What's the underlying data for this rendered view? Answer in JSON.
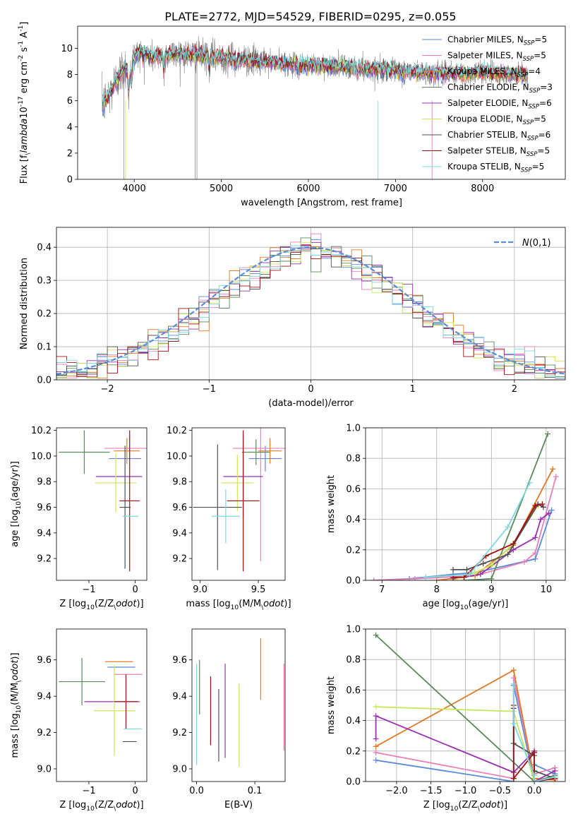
{
  "figure": {
    "title": "PLATE=2772, MJD=54529, FIBERID=0295, z=0.055"
  },
  "colors": {
    "grid": "#b0b0b0",
    "observed_spectrum": "#808080",
    "gauss": "#5b8bd9"
  },
  "models": [
    {
      "name": "Chabrier MILES",
      "nssp": "5",
      "color": "#5b8bd9"
    },
    {
      "name": "Salpeter MILES",
      "nssp": "5",
      "color": "#e97fb9"
    },
    {
      "name": "Kroupa MILES",
      "nssp": "4",
      "color": "#e07b28"
    },
    {
      "name": "Chabrier ELODIE",
      "nssp": "3",
      "color": "#5a8a5a"
    },
    {
      "name": "Salpeter ELODIE",
      "nssp": "6",
      "color": "#9b30b0"
    },
    {
      "name": "Kroupa ELODIE",
      "nssp": "5",
      "color": "#c8e85a"
    },
    {
      "name": "Chabrier STELIB",
      "nssp": "6",
      "color": "#505050"
    },
    {
      "name": "Salpeter STELIB",
      "nssp": "5",
      "color": "#a01010"
    },
    {
      "name": "Kroupa STELIB",
      "nssp": "5",
      "color": "#7dd8e0"
    }
  ],
  "chart_data": [
    {
      "id": "spectrum",
      "type": "line",
      "xlabel": "wavelength [Angstrom, rest frame]",
      "ylabel": "Flux [f$_\\lambda$10$^{-17}$ erg cm$^{-2}$ s$^{-1}$ A$^{-1}$]",
      "xlim": [
        3350,
        8950
      ],
      "ylim": [
        0,
        11.7
      ],
      "xticks": [
        4000,
        5000,
        6000,
        7000,
        8000
      ],
      "yticks": [
        0,
        2,
        4,
        6,
        8,
        10
      ],
      "grid": false,
      "legend": "right",
      "continuum": {
        "x": [
          3650,
          3700,
          3800,
          3900,
          3950,
          4000,
          4100,
          4200,
          4300,
          4400,
          4500,
          4700,
          5000,
          5200,
          5400,
          5600,
          5800,
          6000,
          6200,
          6400,
          6600,
          6800,
          7000,
          7200,
          7400,
          7600,
          7800,
          8000,
          8200,
          8500
        ],
        "y": [
          5.8,
          6.3,
          7.7,
          8.6,
          7.9,
          9.4,
          9.8,
          9.3,
          9.4,
          9.5,
          9.6,
          9.5,
          9.3,
          9.2,
          9.0,
          8.9,
          8.8,
          8.7,
          8.7,
          8.6,
          8.5,
          8.4,
          8.3,
          8.2,
          8.1,
          8.1,
          8.1,
          8.2,
          8.1,
          8.0
        ]
      }
    },
    {
      "id": "residuals",
      "type": "histogram",
      "xlabel": "(data-model)/error",
      "ylabel": "Normed distribution",
      "xlim": [
        -2.5,
        2.5
      ],
      "ylim": [
        0,
        0.46
      ],
      "xticks": [
        -2,
        -1,
        0,
        1,
        2
      ],
      "yticks": [
        0.0,
        0.1,
        0.2,
        0.3,
        0.4
      ],
      "grid": true,
      "legend_label": "$\\mathcal{N}(0,1)$",
      "legend": "top-right",
      "bin_width": 0.1
    },
    {
      "id": "age_vs_Z",
      "type": "scatter",
      "xlabel": "Z [log$_{10}$(Z/Z$_\\odot$)]",
      "ylabel": "age  [log$_{10}$(age/yr)]",
      "xlim": [
        -1.7,
        0.25
      ],
      "ylim": [
        9.03,
        10.22
      ],
      "xticks": [
        -1,
        0
      ],
      "yticks": [
        9.2,
        9.4,
        9.6,
        9.8,
        10.0,
        10.2
      ],
      "grid": false,
      "points": [
        {
          "x": -0.22,
          "xerr": 0.35,
          "y": 9.98,
          "yerr": 0.0,
          "model": 0
        },
        {
          "x": -0.12,
          "xerr": 0.55,
          "y": 10.06,
          "yerr": 0.1,
          "model": 1
        },
        {
          "x": -0.18,
          "xerr": 0.28,
          "y": 10.04,
          "yerr": 0.1,
          "model": 2
        },
        {
          "x": -1.1,
          "xerr": 0.55,
          "y": 10.03,
          "yerr": 0.17,
          "model": 3
        },
        {
          "x": -0.35,
          "xerr": 0.5,
          "y": 9.84,
          "yerr": 0.0,
          "model": 4
        },
        {
          "x": -0.42,
          "xerr": 0.45,
          "y": 9.79,
          "yerr": 0.23,
          "model": 5
        },
        {
          "x": -0.22,
          "xerr": 0.12,
          "y": 9.6,
          "yerr": 0.48,
          "model": 6
        },
        {
          "x": -0.12,
          "xerr": 0.22,
          "y": 9.65,
          "yerr": 0.55,
          "model": 7
        },
        {
          "x": -0.1,
          "xerr": 0.17,
          "y": 9.53,
          "yerr": 0.0,
          "model": 8
        }
      ]
    },
    {
      "id": "age_vs_mass",
      "type": "scatter",
      "xlabel": "mass [log$_{10}$(M/M$_\\odot$)]",
      "ylabel": "",
      "xlim": [
        8.93,
        9.73
      ],
      "ylim": [
        9.03,
        10.22
      ],
      "xticks": [
        9.0,
        9.5
      ],
      "yticks": [
        9.2,
        9.4,
        9.6,
        9.8,
        10.0,
        10.2
      ],
      "grid": false,
      "points": [
        {
          "x": 9.56,
          "xerr": 0.14,
          "y": 9.98,
          "yerr": 0.1,
          "model": 0
        },
        {
          "x": 9.52,
          "xerr": 0.24,
          "y": 10.06,
          "yerr": 0.88,
          "model": 1
        },
        {
          "x": 9.6,
          "xerr": 0.1,
          "y": 10.04,
          "yerr": 0.1,
          "model": 2
        },
        {
          "x": 9.48,
          "xerr": 0.12,
          "y": 10.03,
          "yerr": 0.1,
          "model": 3
        },
        {
          "x": 9.37,
          "xerr": 0.17,
          "y": 9.84,
          "yerr": 0.32,
          "model": 4
        },
        {
          "x": 9.32,
          "xerr": 0.14,
          "y": 9.79,
          "yerr": 0.22,
          "model": 5
        },
        {
          "x": 9.15,
          "xerr": 0.21,
          "y": 9.6,
          "yerr": 0.49,
          "model": 6
        },
        {
          "x": 9.37,
          "xerr": 0.14,
          "y": 9.65,
          "yerr": 0.55,
          "model": 7
        },
        {
          "x": 9.22,
          "xerr": 0.12,
          "y": 9.53,
          "yerr": 0.21,
          "model": 8
        }
      ]
    },
    {
      "id": "weight_vs_age",
      "type": "line",
      "xlabel": "age  [log$_{10}$(age/yr)]",
      "ylabel": "mass weight",
      "xlim": [
        6.7,
        10.35
      ],
      "ylim": [
        0,
        1.0
      ],
      "xticks": [
        7,
        8,
        9,
        10
      ],
      "yticks": [
        0.0,
        0.2,
        0.4,
        0.6,
        0.8,
        1.0
      ],
      "grid": true,
      "series": [
        {
          "model": 0,
          "x": [
            6.85,
            7.5,
            8.3,
            8.7,
            9.8,
            10.1
          ],
          "y": [
            0.0,
            0.01,
            0.04,
            0.05,
            0.14,
            0.46
          ]
        },
        {
          "model": 1,
          "x": [
            6.85,
            7.6,
            8.7,
            9.6,
            9.8,
            10.18
          ],
          "y": [
            0.0,
            0.01,
            0.03,
            0.12,
            0.18,
            0.68
          ]
        },
        {
          "model": 2,
          "x": [
            8.0,
            8.7,
            9.4,
            10.12
          ],
          "y": [
            0.0,
            0.03,
            0.23,
            0.73
          ]
        },
        {
          "model": 3,
          "x": [
            8.5,
            9.0,
            10.03
          ],
          "y": [
            0.0,
            0.01,
            0.96
          ]
        },
        {
          "model": 4,
          "x": [
            8.3,
            8.8,
            9.4,
            9.8,
            9.9,
            10.05
          ],
          "y": [
            0.01,
            0.04,
            0.2,
            0.28,
            0.4,
            0.44
          ]
        },
        {
          "model": 5,
          "x": [
            8.3,
            8.7,
            9.0,
            9.4,
            9.85
          ],
          "y": [
            0.0,
            0.05,
            0.1,
            0.24,
            0.49
          ]
        },
        {
          "model": 6,
          "x": [
            8.3,
            8.55,
            8.85,
            9.3,
            9.85,
            9.95
          ],
          "y": [
            0.07,
            0.07,
            0.11,
            0.17,
            0.5,
            0.48
          ]
        },
        {
          "model": 7,
          "x": [
            8.3,
            8.5,
            8.9,
            9.4,
            9.8,
            9.93
          ],
          "y": [
            0.02,
            0.02,
            0.16,
            0.24,
            0.49,
            0.5
          ]
        },
        {
          "model": 8,
          "x": [
            7.8,
            8.6,
            9.3,
            9.7
          ],
          "y": [
            0.02,
            0.04,
            0.35,
            0.64
          ]
        }
      ]
    },
    {
      "id": "mass_vs_Z",
      "type": "scatter",
      "xlabel": "Z [log$_{10}$(Z/Z$_\\odot$)]",
      "ylabel": "mass [log$_{10}$(M/M$_\\odot$)]",
      "xlim": [
        -1.7,
        0.25
      ],
      "ylim": [
        8.93,
        9.77
      ],
      "xticks": [
        -1,
        0
      ],
      "yticks": [
        9.0,
        9.2,
        9.4,
        9.6
      ],
      "grid": false,
      "points": [
        {
          "x": -0.3,
          "xerr": 0.3,
          "y": 9.56,
          "yerr": 0.0,
          "model": 0
        },
        {
          "x": -0.15,
          "xerr": 0.3,
          "y": 9.52,
          "yerr": 0.0,
          "model": 1
        },
        {
          "x": -0.35,
          "xerr": 0.3,
          "y": 9.59,
          "yerr": 0.0,
          "model": 2
        },
        {
          "x": -1.15,
          "xerr": 0.5,
          "y": 9.48,
          "yerr": 0.13,
          "model": 3
        },
        {
          "x": -0.5,
          "xerr": 0.6,
          "y": 9.37,
          "yerr": 0.0,
          "model": 4
        },
        {
          "x": -0.45,
          "xerr": 0.45,
          "y": 9.32,
          "yerr": 0.25,
          "model": 5
        },
        {
          "x": -0.12,
          "xerr": 0.15,
          "y": 9.15,
          "yerr": 0.0,
          "model": 6
        },
        {
          "x": -0.2,
          "xerr": 0.25,
          "y": 9.37,
          "yerr": 0.15,
          "model": 7
        },
        {
          "x": -0.05,
          "xerr": 0.2,
          "y": 9.22,
          "yerr": 0.0,
          "model": 8
        }
      ]
    },
    {
      "id": "mass_vs_EBV",
      "type": "scatter",
      "xlabel": "E(B-V)",
      "ylabel": "",
      "xlim": [
        -0.008,
        0.152
      ],
      "ylim": [
        8.93,
        9.77
      ],
      "xticks": [
        0.0,
        0.1
      ],
      "yticks": [
        9.0,
        9.2,
        9.4,
        9.6
      ],
      "grid": false,
      "points": [
        {
          "x": 0.0,
          "xerr": 0,
          "y": 9.3,
          "yerr": 0.28,
          "model": 8
        },
        {
          "x": 0.005,
          "xerr": 0,
          "y": 9.45,
          "yerr": 0.15,
          "model": 3
        },
        {
          "x": 0.024,
          "xerr": 0,
          "y": 9.32,
          "yerr": 0.19,
          "model": 7
        },
        {
          "x": 0.038,
          "xerr": 0,
          "y": 9.24,
          "yerr": 0.2,
          "model": 6
        },
        {
          "x": 0.049,
          "xerr": 0,
          "y": 9.32,
          "yerr": 0.26,
          "model": 4
        },
        {
          "x": 0.073,
          "xerr": 0,
          "y": 9.24,
          "yerr": 0.23,
          "model": 5
        },
        {
          "x": 0.11,
          "xerr": 0,
          "y": 9.55,
          "yerr": 0.17,
          "model": 2
        },
        {
          "x": 0.15,
          "xerr": 0,
          "y": 9.34,
          "yerr": 0.24,
          "model": 1
        }
      ]
    },
    {
      "id": "weight_vs_Z",
      "type": "line",
      "xlabel": "Z [log$_{10}$(Z/Z$_\\odot$)]",
      "ylabel": "mass weight",
      "xlim": [
        -2.45,
        0.45
      ],
      "ylim": [
        0,
        1.0
      ],
      "xticks": [
        -2.0,
        -1.5,
        -1.0,
        -0.5,
        0.0
      ],
      "yticks": [
        0.0,
        0.2,
        0.4,
        0.6,
        0.8,
        1.0
      ],
      "grid": true,
      "series": [
        {
          "model": 0,
          "x": [
            -2.3,
            -0.3,
            -0.3,
            0.0,
            0.0,
            0.3
          ],
          "y": [
            0.14,
            0.0,
            0.63,
            0.0,
            0.11,
            0.05
          ]
        },
        {
          "model": 1,
          "x": [
            -2.3,
            -0.3,
            -0.3,
            0.0,
            0.0,
            0.3
          ],
          "y": [
            0.19,
            0.02,
            0.68,
            0.02,
            0.05,
            0.09
          ]
        },
        {
          "model": 2,
          "x": [
            -2.3,
            -0.3,
            0.0,
            0.3
          ],
          "y": [
            0.23,
            0.73,
            0.02,
            0.01
          ]
        },
        {
          "model": 3,
          "x": [
            -2.3,
            0.0,
            0.3
          ],
          "y": [
            0.96,
            0.0,
            0.04
          ]
        },
        {
          "model": 4,
          "x": [
            -2.3,
            -2.3,
            -0.3,
            0.0,
            0.0,
            0.3
          ],
          "y": [
            0.28,
            0.43,
            0.06,
            0.2,
            0.0,
            0.07
          ]
        },
        {
          "model": 5,
          "x": [
            -2.3,
            -0.3,
            0.0,
            0.3
          ],
          "y": [
            0.49,
            0.46,
            0.0,
            0.02
          ]
        },
        {
          "model": 6,
          "x": [
            -0.3,
            -0.3,
            0.0,
            0.0,
            0.3
          ],
          "y": [
            0.48,
            0.25,
            0.17,
            0.07,
            0.02
          ]
        },
        {
          "model": 7,
          "x": [
            -0.3,
            -0.3,
            0.0,
            0.0,
            0.3
          ],
          "y": [
            0.5,
            0.02,
            0.19,
            0.0,
            0.02
          ]
        },
        {
          "model": 8,
          "x": [
            -0.3,
            -0.3,
            0.0,
            0.0,
            0.3
          ],
          "y": [
            0.64,
            0.38,
            0.04,
            0.0,
            0.03
          ]
        }
      ]
    }
  ]
}
